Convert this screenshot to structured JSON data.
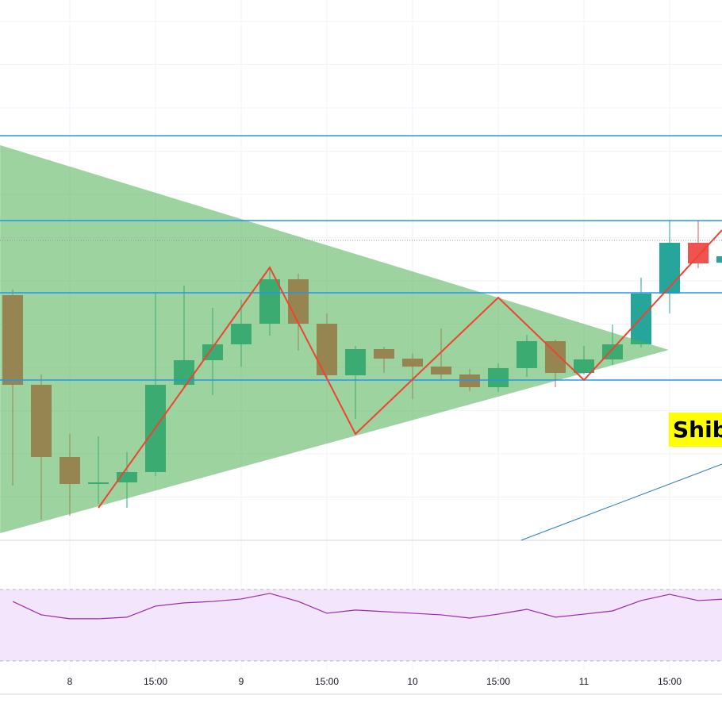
{
  "chart_data": {
    "type": "candlestick",
    "categories": [
      null,
      null,
      "8",
      null,
      null,
      "15:00",
      null,
      null,
      "9",
      null,
      null,
      "15:00",
      null,
      null,
      "10",
      null,
      null,
      "15:00",
      null,
      null,
      "11",
      null,
      null,
      "15:00",
      null,
      null
    ],
    "open": [
      328,
      215,
      124,
      90,
      92,
      105,
      215,
      246,
      266,
      292,
      348,
      292,
      227,
      260,
      248,
      238,
      228,
      212,
      236,
      270,
      230,
      247,
      266,
      330,
      394,
      369
    ],
    "high": [
      335,
      228,
      153,
      150,
      130,
      330,
      340,
      312,
      322,
      362,
      355,
      305,
      264,
      263,
      255,
      286,
      235,
      242,
      278,
      272,
      264,
      291,
      350,
      423,
      422,
      377
    ],
    "low": [
      88,
      45,
      50,
      65,
      60,
      100,
      210,
      202,
      238,
      277,
      258,
      225,
      172,
      230,
      197,
      222,
      207,
      206,
      225,
      212,
      228,
      240,
      262,
      305,
      362,
      366
    ],
    "close": [
      215,
      124,
      90,
      92,
      105,
      215,
      246,
      266,
      292,
      348,
      292,
      227,
      260,
      248,
      238,
      228,
      212,
      236,
      270,
      230,
      247,
      266,
      330,
      394,
      368,
      377
    ],
    "up_color": "#26a69a",
    "down_color": "#ef5350",
    "ylim": [
      0,
      700
    ],
    "levels": [
      529,
      422,
      331,
      221
    ],
    "level_color": "#2196f3",
    "price_line": 397,
    "triangle": {
      "x": [
        -0.44,
        22.97,
        -0.44
      ],
      "y": [
        517,
        259,
        28
      ],
      "color": "rgba(76,175,80,0.55)"
    },
    "zigzag": {
      "x": [
        3,
        9,
        12,
        17,
        20,
        24.83
      ],
      "y": [
        60,
        363,
        153,
        325,
        221,
        410
      ],
      "color": "#f0432f"
    },
    "trend_line": {
      "x": [
        17.8,
        24.83
      ],
      "y": [
        19,
        115
      ],
      "color": "#2a7fb8"
    },
    "annotation": "Shib",
    "rsi": {
      "values": [
        63.3,
        55.8,
        53.6,
        53.6,
        54.5,
        60.7,
        62.5,
        63.3,
        64.7,
        67.8,
        63.3,
        56.7,
        58.5,
        57.6,
        56.7,
        55.8,
        54,
        56.2,
        58.9,
        54.5,
        56.2,
        58,
        63.8,
        67.3,
        63.8,
        64.7
      ],
      "levels": [
        70,
        30
      ],
      "color": "#9c27b0"
    }
  }
}
